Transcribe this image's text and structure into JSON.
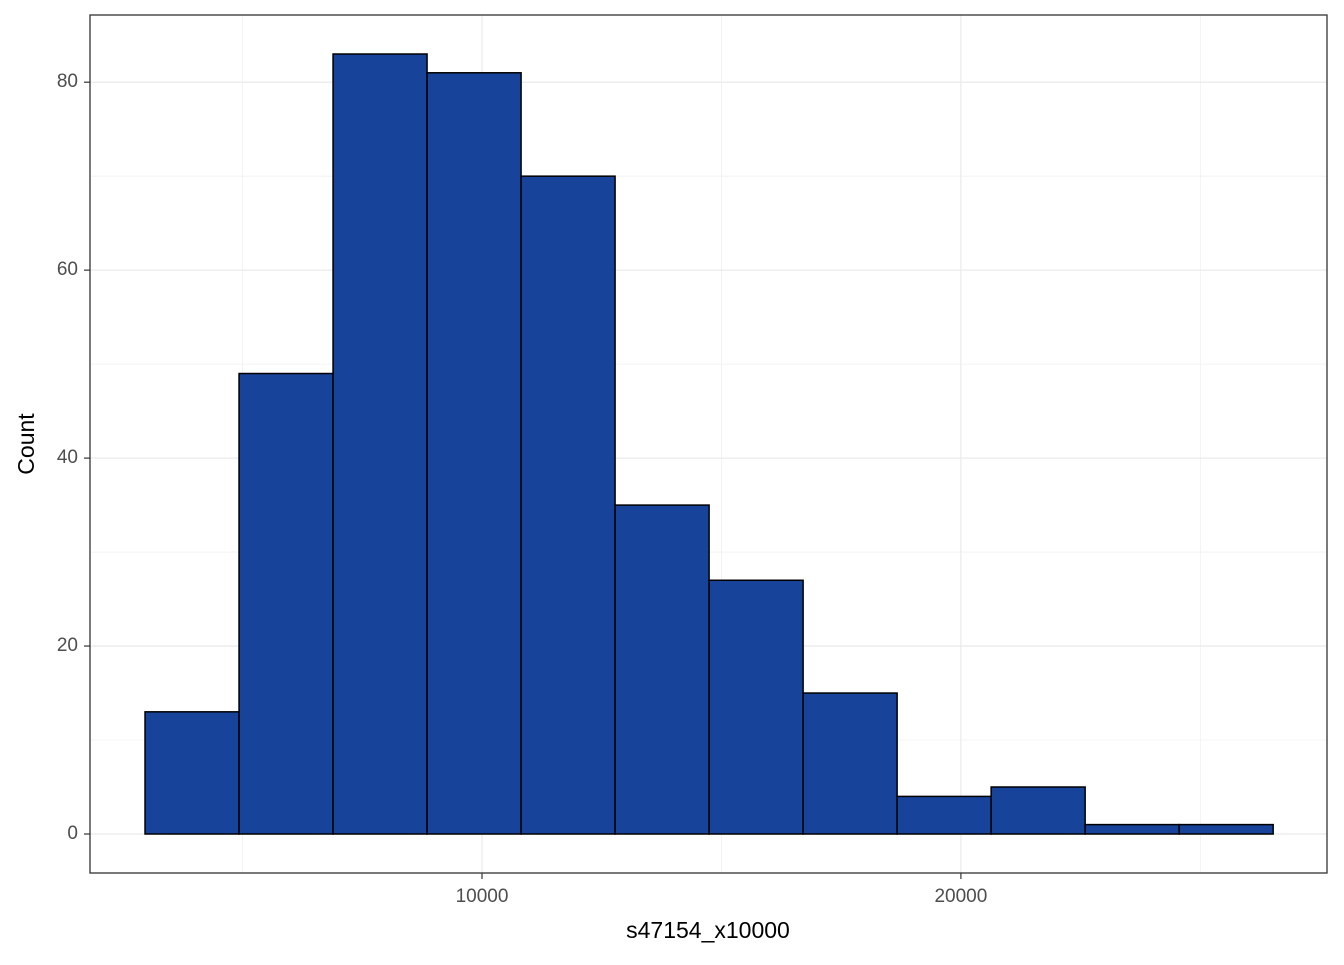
{
  "chart_data": {
    "type": "histogram",
    "x_label": "s47154_x10000",
    "y_label": "Count",
    "bins": [
      2964,
      4927,
      6890,
      8853,
      10816,
      12779,
      14742,
      16705,
      18668,
      20631,
      22594,
      24557,
      26520
    ],
    "counts": [
      13,
      49,
      83,
      81,
      70,
      35,
      27,
      15,
      4,
      5,
      1,
      1
    ],
    "color": "#18439a",
    "edge_color": "#000000",
    "xlim": [
      1815,
      27644
    ],
    "ylim": [
      -4.15,
      87.15
    ],
    "xticks": [
      10000,
      20000
    ],
    "yticks": [
      0,
      20,
      40,
      60,
      80
    ],
    "xminor": [
      5000,
      15000,
      25000
    ],
    "yminor": [
      10,
      30,
      50,
      70
    ],
    "grid": true
  }
}
